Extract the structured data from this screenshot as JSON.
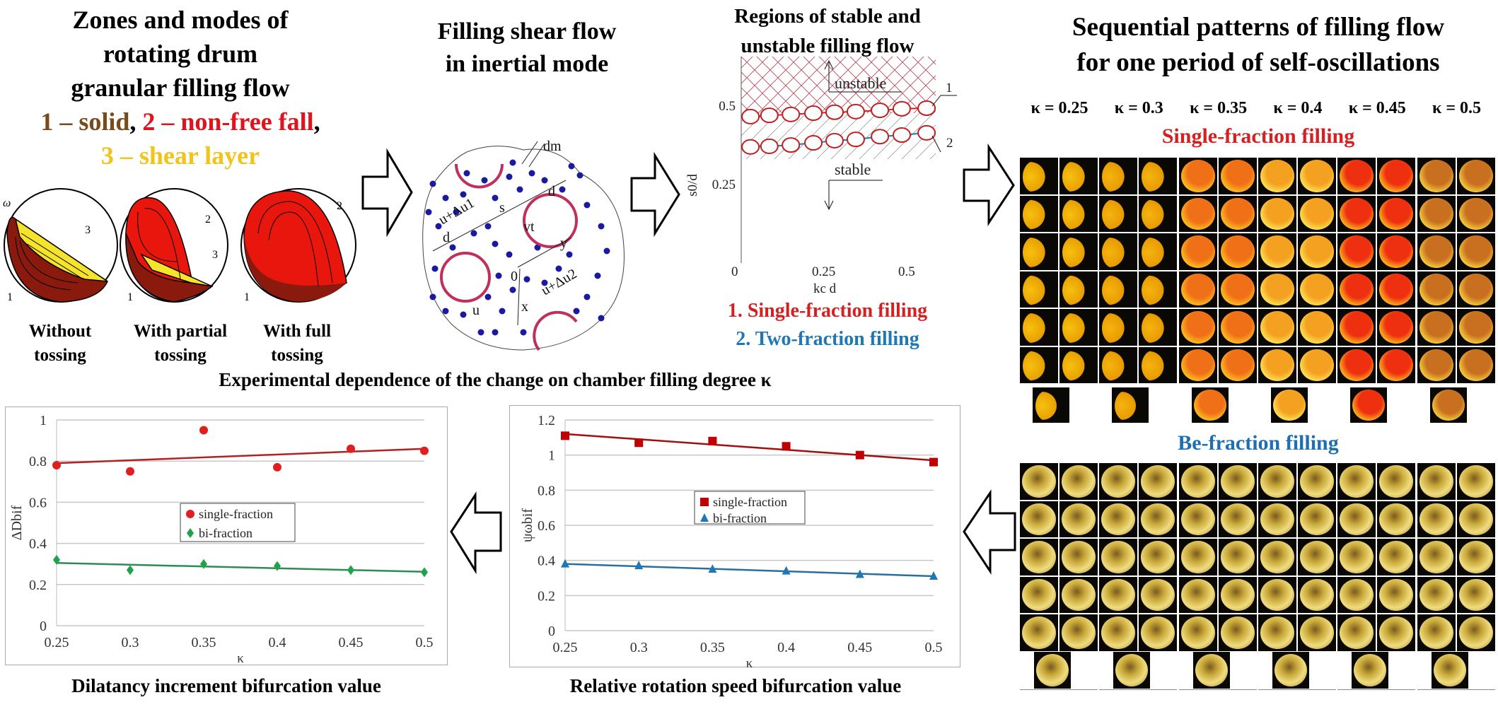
{
  "zones": {
    "title_lines": [
      "Zones and modes of",
      "rotating drum",
      "granular filling flow"
    ],
    "legend": {
      "solid": "1 – solid",
      "sep1": ", ",
      "nonfree": "2 – non-free fall",
      "sep2": ",",
      "shear": "3 – shear layer"
    },
    "modes": [
      {
        "line1": "Without",
        "line2": "tossing"
      },
      {
        "line1": "With partial",
        "line2": "tossing"
      },
      {
        "line1": "With full",
        "line2": "tossing"
      }
    ],
    "labels": {
      "omega": "ω",
      "z1": "1",
      "z2": "2",
      "z3": "3"
    },
    "colors": {
      "solid": "#8b1a0e",
      "nonfree": "#e8160c",
      "shear": "#f5e42a",
      "solid_text": "#7a4a1a",
      "nonfree_text": "#e0141c",
      "shear_text": "#f0c419"
    }
  },
  "shear": {
    "title_lines": [
      "Filling shear flow",
      "in inertial mode"
    ],
    "labels": {
      "dm": "dm",
      "d": "d",
      "s": "s",
      "vt": "vt",
      "y": "y",
      "x": "x",
      "o": "0",
      "u": "u",
      "u1": "u+Δu1",
      "u2": "u+Δu2"
    },
    "colors": {
      "particle": "#1a1aa0",
      "large": "#c0305a"
    }
  },
  "stability": {
    "title_lines": [
      "Regions of stable and",
      "unstable filling flow"
    ],
    "ylabel": "s0/d",
    "xlabel": "kc d",
    "yticks": [
      "0.5",
      "0.25"
    ],
    "xticks": [
      "0",
      "0.25",
      "0.5"
    ],
    "unstable_label": "unstable",
    "stable_label": "stable",
    "series_markers": [
      "1",
      "2"
    ],
    "legend": [
      "1. Single-fraction filling",
      "2. Two-fraction filling"
    ],
    "colors": {
      "single": "#d42020",
      "two": "#1f78b4"
    }
  },
  "caption_middle": "Experimental dependence of the change on chamber filling degree κ",
  "patterns": {
    "title_lines": [
      "Sequential patterns of filling flow",
      "for one period of self-oscillations"
    ],
    "kappa_labels": [
      "κ = 0.25",
      "κ = 0.3",
      "κ = 0.35",
      "κ = 0.4",
      "κ = 0.45",
      "κ = 0.5"
    ],
    "single_label": "Single-fraction filling",
    "bi_label": "Be-fraction filling",
    "colors": {
      "single_label": "#d42020",
      "bi_label": "#1f6fb0"
    }
  },
  "chart_data": [
    {
      "type": "scatter",
      "title": "",
      "caption": "Dilatancy increment bifurcation value",
      "xlabel": "κ",
      "ylabel": "ΔDbif",
      "x": [
        0.25,
        0.3,
        0.35,
        0.4,
        0.45,
        0.5
      ],
      "xticks": [
        "0.25",
        "0.3",
        "0.35",
        "0.4",
        "0.45",
        "0.5"
      ],
      "yticks": [
        "0",
        "0.2",
        "0.4",
        "0.6",
        "0.8",
        "1"
      ],
      "ylim": [
        0,
        1
      ],
      "grid": true,
      "legend_placement": "center",
      "series": [
        {
          "name": "single-fraction",
          "marker": "circle",
          "color": "#e02020",
          "trend_color": "#b22222",
          "values": [
            0.78,
            0.75,
            0.95,
            0.77,
            0.86,
            0.85
          ],
          "trend": [
            0.79,
            0.86
          ]
        },
        {
          "name": "bi-fraction",
          "marker": "diamond",
          "color": "#1fa34a",
          "trend_color": "#2e8b57",
          "values": [
            0.32,
            0.27,
            0.3,
            0.29,
            0.27,
            0.26
          ],
          "trend": [
            0.305,
            0.262
          ]
        }
      ]
    },
    {
      "type": "scatter",
      "title": "",
      "caption": "Relative rotation speed bifurcation value",
      "xlabel": "κ",
      "ylabel": "ψωbif",
      "x": [
        0.25,
        0.3,
        0.35,
        0.4,
        0.45,
        0.5
      ],
      "xticks": [
        "0.25",
        "0.3",
        "0.35",
        "0.4",
        "0.45",
        "0.5"
      ],
      "yticks": [
        "0",
        "0.2",
        "0.4",
        "0.6",
        "0.8",
        "1",
        "1.2"
      ],
      "ylim": [
        0,
        1.2
      ],
      "grid": true,
      "legend_placement": "center-left",
      "series": [
        {
          "name": "single-fraction",
          "marker": "square",
          "color": "#c00000",
          "trend_color": "#a01010",
          "values": [
            1.11,
            1.07,
            1.08,
            1.05,
            1.0,
            0.96
          ],
          "trend": [
            1.12,
            0.97
          ]
        },
        {
          "name": "bi-fraction",
          "marker": "triangle",
          "color": "#1f78b4",
          "trend_color": "#2a6fa0",
          "values": [
            0.38,
            0.37,
            0.35,
            0.34,
            0.32,
            0.31
          ],
          "trend": [
            0.38,
            0.31
          ]
        }
      ]
    },
    {
      "type": "line",
      "title": "Regions of stable and unstable filling flow",
      "xlabel": "kc d",
      "ylabel": "s0/d",
      "xlim": [
        0,
        0.6
      ],
      "ylim": [
        0,
        0.6
      ],
      "series": [
        {
          "name": "1",
          "x": [
            0.028,
            0.085,
            0.15,
            0.218,
            0.282,
            0.346,
            0.419,
            0.485,
            0.56
          ],
          "values": [
            0.464,
            0.468,
            0.471,
            0.475,
            0.478,
            0.48,
            0.484,
            0.489,
            0.491
          ]
        },
        {
          "name": "2",
          "x": [
            0.028,
            0.085,
            0.15,
            0.218,
            0.282,
            0.346,
            0.419,
            0.485,
            0.56
          ],
          "values": [
            0.367,
            0.369,
            0.373,
            0.38,
            0.387,
            0.391,
            0.4,
            0.405,
            0.412
          ]
        }
      ]
    }
  ]
}
